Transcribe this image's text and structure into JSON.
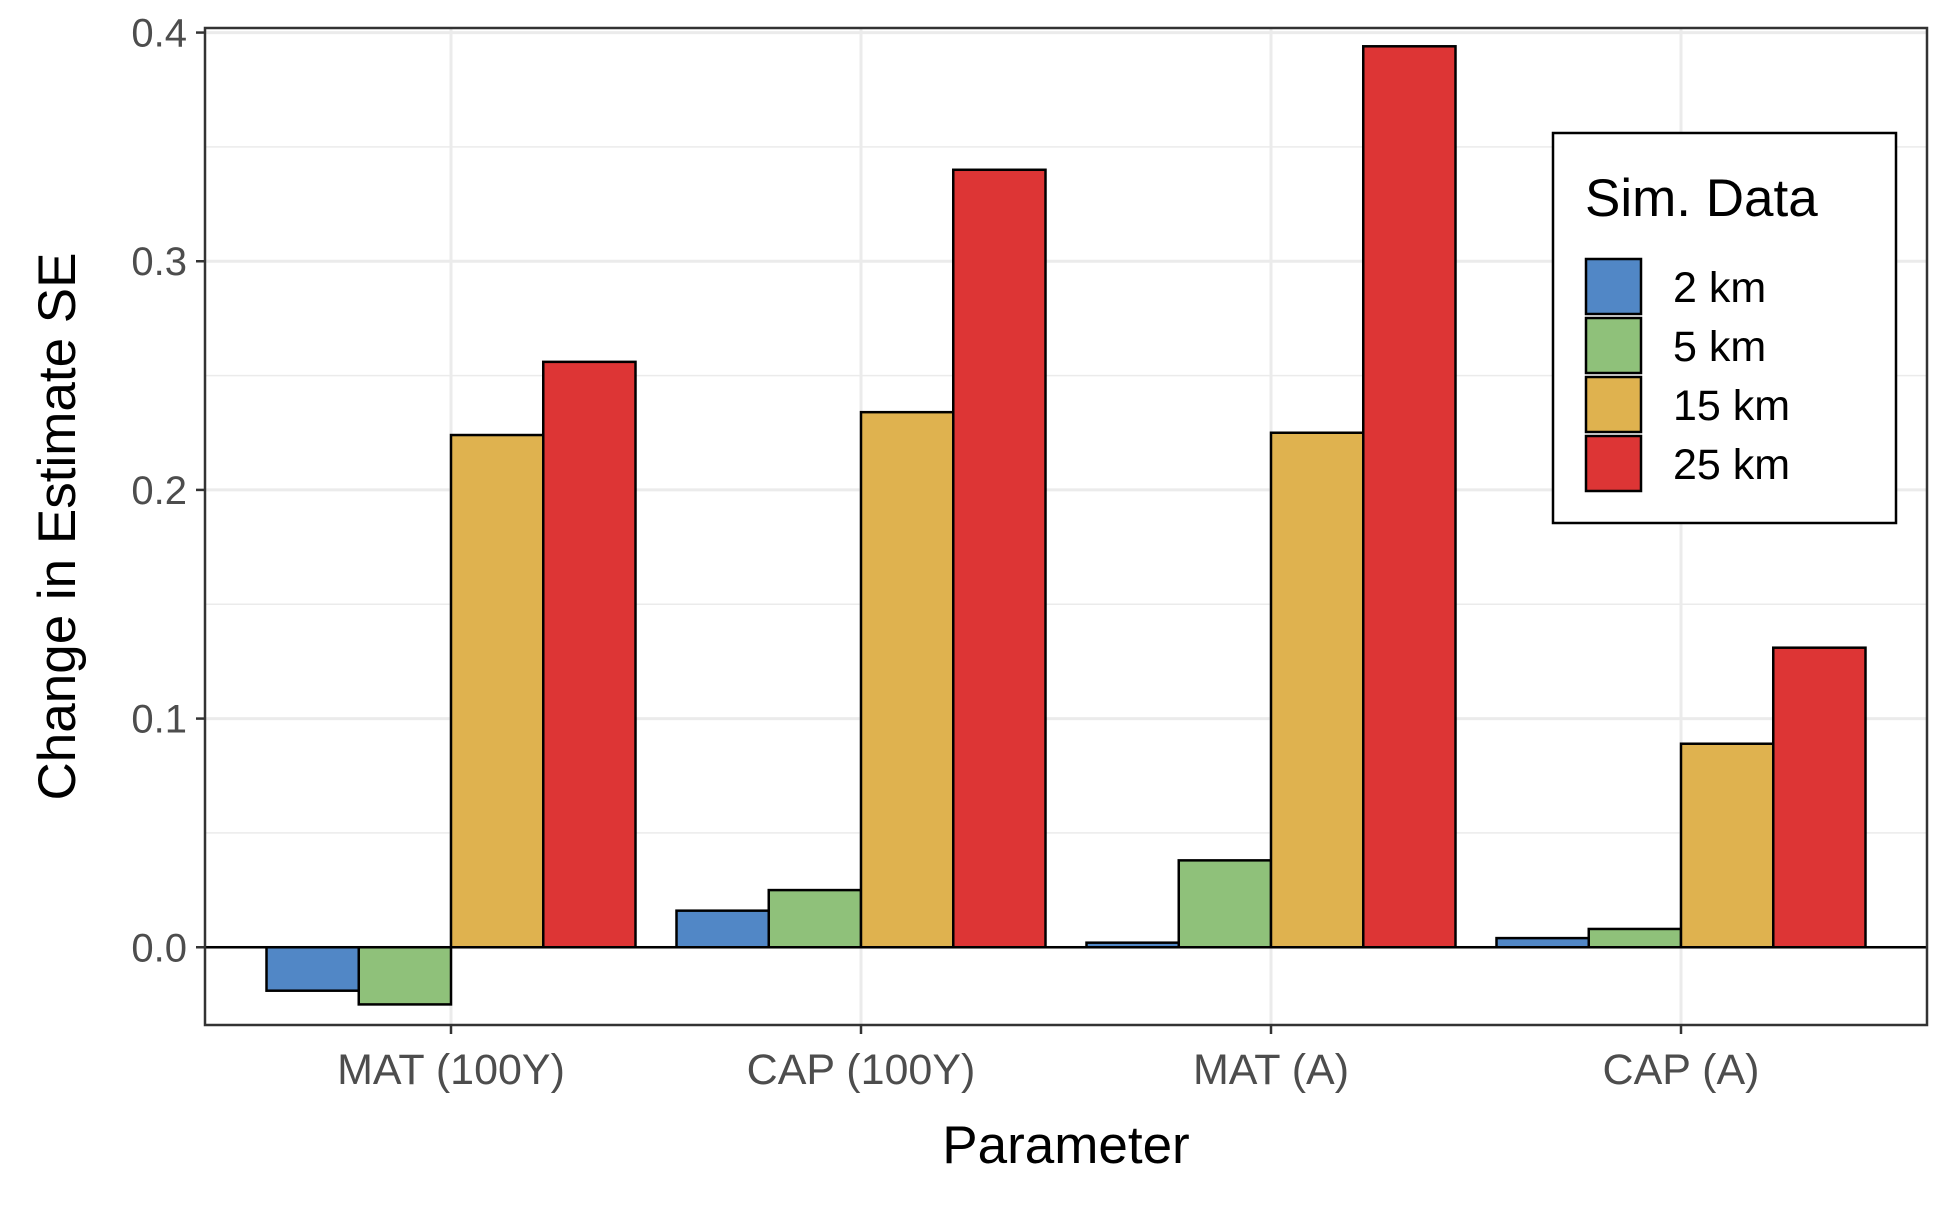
{
  "chart_data": {
    "type": "bar",
    "xlabel": "Parameter",
    "ylabel": "Change in Estimate SE",
    "categories": [
      "MAT (100Y)",
      "CAP (100Y)",
      "MAT (A)",
      "CAP (A)"
    ],
    "ylim": [
      -0.034,
      0.402
    ],
    "yticks": [
      0.0,
      0.1,
      0.2,
      0.3,
      0.4
    ],
    "ytick_labels": [
      "0.0",
      "0.1",
      "0.2",
      "0.3",
      "0.4"
    ],
    "grid": true,
    "legend": {
      "title": "Sim. Data",
      "position": "right-inside-top"
    },
    "series": [
      {
        "name": "2 km",
        "color": "#5187C6",
        "values": [
          -0.019,
          0.016,
          0.002,
          0.004
        ]
      },
      {
        "name": "5 km",
        "color": "#8FC17A",
        "values": [
          -0.025,
          0.025,
          0.038,
          0.008
        ]
      },
      {
        "name": "15 km",
        "color": "#DFB24F",
        "values": [
          0.224,
          0.234,
          0.225,
          0.089
        ]
      },
      {
        "name": "25 km",
        "color": "#DD3535",
        "values": [
          0.256,
          0.34,
          0.394,
          0.131
        ]
      }
    ]
  }
}
